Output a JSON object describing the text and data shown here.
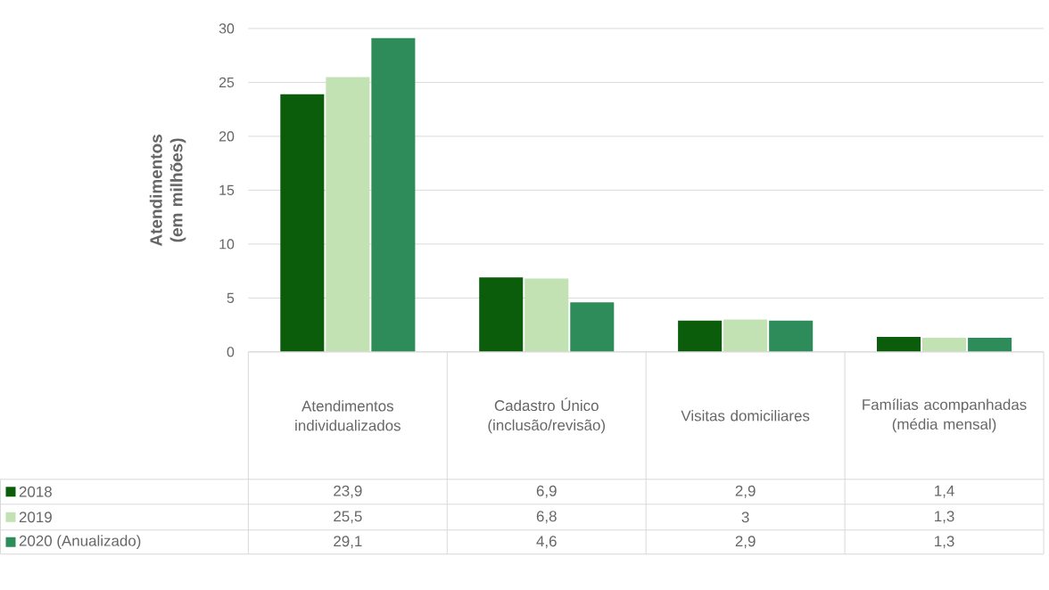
{
  "chart_data": {
    "type": "bar",
    "ylabel": "Atendimentos (em milhões)",
    "categories": [
      "Atendimentos individualizados",
      "Cadastro Único (inclusão/revisão)",
      "Visitas domiciliares",
      "Famílias acompanhadas (média mensal)"
    ],
    "series": [
      {
        "name": "2018",
        "color": "#0b5d0b",
        "values": [
          23.9,
          6.9,
          2.9,
          1.4
        ],
        "value_labels": [
          "23,9",
          "6,9",
          "2,9",
          "1,4"
        ]
      },
      {
        "name": "2019",
        "color": "#c3e2b3",
        "values": [
          25.5,
          6.8,
          3,
          1.3
        ],
        "value_labels": [
          "25,5",
          "6,8",
          "3",
          "1,3"
        ]
      },
      {
        "name": "2020 (Anualizado)",
        "color": "#2e8b5a",
        "values": [
          29.1,
          4.6,
          2.9,
          1.3
        ],
        "value_labels": [
          "29,1",
          "4,6",
          "2,9",
          "1,3"
        ]
      }
    ],
    "ylim": [
      0,
      30
    ],
    "yticks": [
      0,
      5,
      10,
      15,
      20,
      25,
      30
    ],
    "grid": "y",
    "legend": "bottom"
  }
}
